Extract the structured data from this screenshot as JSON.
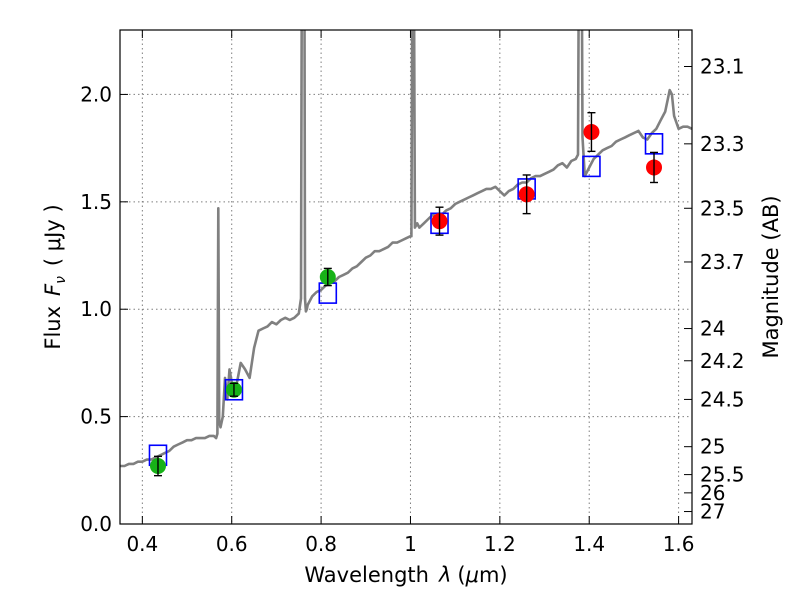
{
  "chart_data": {
    "type": "scatter",
    "xlabel": "Wavelength",
    "xlabel_symbol": "λ",
    "xlabel_unit_open": "(",
    "xlabel_unit_mu": "μ",
    "xlabel_unit_rest": "m)",
    "ylabel": "Flux",
    "ylabel_symbol": "F",
    "ylabel_subscript": "ν",
    "ylabel_unit": "( μJy )",
    "y2label": "Magnitude (AB)",
    "xlim": [
      0.35,
      1.63
    ],
    "ylim": [
      0.0,
      2.3
    ],
    "grid": true,
    "x_ticks": [
      {
        "value": 0.4,
        "label": "0.4"
      },
      {
        "value": 0.6,
        "label": "0.6"
      },
      {
        "value": 0.8,
        "label": "0.8"
      },
      {
        "value": 1.0,
        "label": "1"
      },
      {
        "value": 1.2,
        "label": "1.2"
      },
      {
        "value": 1.4,
        "label": "1.4"
      },
      {
        "value": 1.6,
        "label": "1.6"
      }
    ],
    "y_ticks": [
      {
        "value": 0.0,
        "label": "0.0"
      },
      {
        "value": 0.5,
        "label": "0.5"
      },
      {
        "value": 1.0,
        "label": "1.0"
      },
      {
        "value": 1.5,
        "label": "1.5"
      },
      {
        "value": 2.0,
        "label": "2.0"
      }
    ],
    "y2_ticks": [
      {
        "flux": 2.13,
        "label": "23.1"
      },
      {
        "flux": 1.77,
        "label": "23.3"
      },
      {
        "flux": 1.47,
        "label": "23.5"
      },
      {
        "flux": 1.22,
        "label": "23.7"
      },
      {
        "flux": 0.91,
        "label": "24"
      },
      {
        "flux": 0.76,
        "label": "24.2"
      },
      {
        "flux": 0.58,
        "label": "24.5"
      },
      {
        "flux": 0.36,
        "label": "25"
      },
      {
        "flux": 0.23,
        "label": "25.5"
      },
      {
        "flux": 0.145,
        "label": "26"
      },
      {
        "flux": 0.058,
        "label": "27"
      }
    ],
    "colors": {
      "model": "#808080",
      "green_points": "#17b217",
      "red_points": "#ff0000",
      "model_boxes": "#0000ff",
      "errorbar": "#000000",
      "grid": "#7f7f7f"
    },
    "series": [
      {
        "kind": "line",
        "x": [
          0.35,
          0.36,
          0.37,
          0.38,
          0.39,
          0.4,
          0.41,
          0.42,
          0.43,
          0.44,
          0.45,
          0.46,
          0.47,
          0.48,
          0.49,
          0.5,
          0.51,
          0.52,
          0.53,
          0.54,
          0.55,
          0.56,
          0.565,
          0.568,
          0.57,
          0.572,
          0.575,
          0.58,
          0.585,
          0.59,
          0.595,
          0.6,
          0.605,
          0.61,
          0.62,
          0.63,
          0.64,
          0.65,
          0.66,
          0.67,
          0.68,
          0.69,
          0.7,
          0.71,
          0.72,
          0.73,
          0.74,
          0.75,
          0.755,
          0.758,
          0.76,
          0.762,
          0.764,
          0.766,
          0.768,
          0.77,
          0.78,
          0.79,
          0.8,
          0.81,
          0.82,
          0.83,
          0.84,
          0.85,
          0.86,
          0.87,
          0.88,
          0.89,
          0.9,
          0.91,
          0.92,
          0.93,
          0.94,
          0.95,
          0.96,
          0.97,
          0.98,
          0.99,
          1.0,
          1.002,
          1.005,
          1.008,
          1.01,
          1.015,
          1.02,
          1.03,
          1.04,
          1.05,
          1.06,
          1.07,
          1.08,
          1.09,
          1.1,
          1.11,
          1.12,
          1.13,
          1.14,
          1.15,
          1.16,
          1.17,
          1.18,
          1.19,
          1.2,
          1.21,
          1.22,
          1.23,
          1.24,
          1.25,
          1.26,
          1.27,
          1.28,
          1.29,
          1.3,
          1.31,
          1.32,
          1.33,
          1.34,
          1.35,
          1.36,
          1.37,
          1.375,
          1.378,
          1.38,
          1.382,
          1.385,
          1.39,
          1.4,
          1.41,
          1.42,
          1.43,
          1.44,
          1.45,
          1.46,
          1.47,
          1.48,
          1.49,
          1.5,
          1.51,
          1.52,
          1.53,
          1.54,
          1.55,
          1.56,
          1.57,
          1.58,
          1.585,
          1.59,
          1.6,
          1.61,
          1.62,
          1.63
        ],
        "y": [
          0.27,
          0.27,
          0.28,
          0.28,
          0.29,
          0.29,
          0.3,
          0.3,
          0.31,
          0.32,
          0.33,
          0.34,
          0.36,
          0.37,
          0.38,
          0.39,
          0.39,
          0.4,
          0.4,
          0.4,
          0.41,
          0.41,
          0.4,
          0.42,
          1.47,
          0.48,
          0.45,
          0.5,
          0.68,
          0.58,
          0.72,
          0.66,
          0.62,
          0.64,
          0.75,
          0.72,
          0.68,
          0.82,
          0.9,
          0.91,
          0.92,
          0.94,
          0.93,
          0.95,
          0.96,
          0.95,
          0.96,
          0.98,
          1.05,
          3.5,
          2.5,
          3.5,
          1.05,
          0.99,
          1.0,
          1.02,
          1.06,
          1.08,
          1.09,
          1.11,
          1.12,
          1.13,
          1.15,
          1.16,
          1.17,
          1.19,
          1.2,
          1.22,
          1.24,
          1.25,
          1.27,
          1.27,
          1.28,
          1.29,
          1.31,
          1.31,
          1.32,
          1.33,
          1.34,
          1.34,
          3.0,
          2.5,
          1.38,
          1.4,
          1.38,
          1.4,
          1.42,
          1.44,
          1.43,
          1.44,
          1.46,
          1.47,
          1.49,
          1.5,
          1.51,
          1.52,
          1.53,
          1.54,
          1.55,
          1.56,
          1.56,
          1.57,
          1.55,
          1.53,
          1.55,
          1.56,
          1.58,
          1.59,
          1.59,
          1.61,
          1.62,
          1.62,
          1.63,
          1.64,
          1.65,
          1.67,
          1.68,
          1.66,
          1.69,
          1.7,
          1.72,
          3.2,
          2.8,
          3.2,
          1.8,
          1.62,
          1.66,
          1.7,
          1.72,
          1.74,
          1.75,
          1.76,
          1.78,
          1.79,
          1.8,
          1.81,
          1.82,
          1.83,
          1.8,
          1.79,
          1.82,
          1.84,
          1.88,
          1.92,
          2.02,
          2.0,
          1.9,
          1.84,
          1.85,
          1.85,
          1.84
        ]
      },
      {
        "kind": "box",
        "x": [
          0.435,
          0.605,
          0.815,
          1.065,
          1.26,
          1.405,
          1.545
        ],
        "y": [
          0.32,
          0.625,
          1.075,
          1.4,
          1.56,
          1.665,
          1.77
        ]
      },
      {
        "kind": "points",
        "color": "green",
        "x": [
          0.435,
          0.605,
          0.815
        ],
        "y": [
          0.27,
          0.625,
          1.15
        ],
        "err": [
          0.045,
          0.03,
          0.04
        ]
      },
      {
        "kind": "points",
        "color": "red",
        "x": [
          1.065,
          1.26,
          1.405,
          1.545
        ],
        "y": [
          1.41,
          1.535,
          1.825,
          1.66
        ],
        "err": [
          0.065,
          0.09,
          0.09,
          0.07
        ]
      }
    ]
  }
}
